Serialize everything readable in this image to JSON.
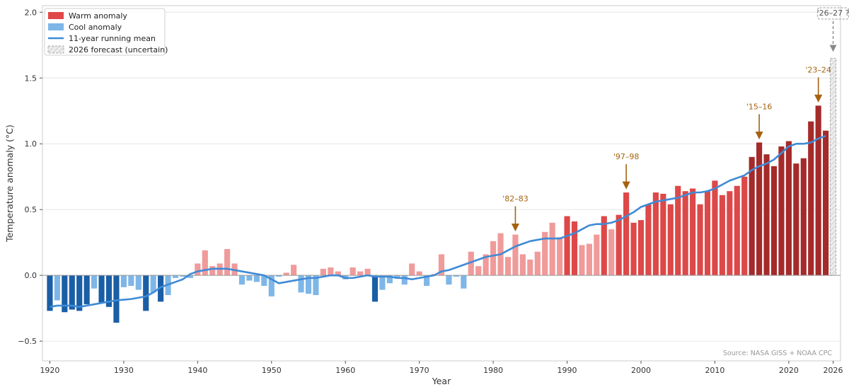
{
  "chart_data": {
    "type": "bar",
    "title": "",
    "xlabel": "Year",
    "ylabel": "Temperature anomaly (°C)",
    "xlim": [
      1919,
      2027
    ],
    "ylim": [
      -0.65,
      2.05
    ],
    "x_ticks": [
      1920,
      1930,
      1940,
      1950,
      1960,
      1970,
      1980,
      1990,
      2000,
      2010,
      2020,
      2026
    ],
    "y_ticks": [
      -0.5,
      0.0,
      0.5,
      1.0,
      1.5,
      2.0
    ],
    "y_tick_labels": [
      "−0.5",
      "0.0",
      "0.5",
      "1.0",
      "1.5",
      "2.0"
    ],
    "grid": "horizontal",
    "legend_placement": "top-left",
    "years": [
      1920,
      1921,
      1922,
      1923,
      1924,
      1925,
      1926,
      1927,
      1928,
      1929,
      1930,
      1931,
      1932,
      1933,
      1934,
      1935,
      1936,
      1937,
      1938,
      1939,
      1940,
      1941,
      1942,
      1943,
      1944,
      1945,
      1946,
      1947,
      1948,
      1949,
      1950,
      1951,
      1952,
      1953,
      1954,
      1955,
      1956,
      1957,
      1958,
      1959,
      1960,
      1961,
      1962,
      1963,
      1964,
      1965,
      1966,
      1967,
      1968,
      1969,
      1970,
      1971,
      1972,
      1973,
      1974,
      1975,
      1976,
      1977,
      1978,
      1979,
      1980,
      1981,
      1982,
      1983,
      1984,
      1985,
      1986,
      1987,
      1988,
      1989,
      1990,
      1991,
      1992,
      1993,
      1994,
      1995,
      1996,
      1997,
      1998,
      1999,
      2000,
      2001,
      2002,
      2003,
      2004,
      2005,
      2006,
      2007,
      2008,
      2009,
      2010,
      2011,
      2012,
      2013,
      2014,
      2015,
      2016,
      2017,
      2018,
      2019,
      2020,
      2021,
      2022,
      2023,
      2024,
      2025
    ],
    "anomalies": [
      -0.27,
      -0.19,
      -0.28,
      -0.26,
      -0.27,
      -0.22,
      -0.1,
      -0.21,
      -0.24,
      -0.36,
      -0.09,
      -0.08,
      -0.11,
      -0.27,
      -0.13,
      -0.2,
      -0.15,
      -0.02,
      -0.01,
      -0.02,
      0.09,
      0.19,
      0.07,
      0.09,
      0.2,
      0.09,
      -0.07,
      -0.04,
      -0.05,
      -0.08,
      -0.16,
      -0.01,
      0.02,
      0.08,
      -0.13,
      -0.14,
      -0.15,
      0.05,
      0.06,
      0.03,
      -0.03,
      0.06,
      0.03,
      0.05,
      -0.2,
      -0.11,
      -0.06,
      -0.02,
      -0.07,
      0.09,
      0.03,
      -0.08,
      0.01,
      0.16,
      -0.07,
      -0.01,
      -0.1,
      0.18,
      0.07,
      0.16,
      0.26,
      0.32,
      0.14,
      0.31,
      0.16,
      0.12,
      0.18,
      0.33,
      0.4,
      0.29,
      0.45,
      0.41,
      0.23,
      0.24,
      0.31,
      0.45,
      0.35,
      0.46,
      0.63,
      0.4,
      0.42,
      0.54,
      0.63,
      0.62,
      0.54,
      0.68,
      0.64,
      0.66,
      0.54,
      0.64,
      0.72,
      0.61,
      0.64,
      0.68,
      0.75,
      0.9,
      1.01,
      0.92,
      0.83,
      0.98,
      1.02,
      0.85,
      0.89,
      1.17,
      1.29,
      1.1
    ],
    "running_mean": {
      "x": [
        1920,
        1921,
        1922,
        1923,
        1924,
        1925,
        1926,
        1927,
        1928,
        1929,
        1930,
        1931,
        1932,
        1933,
        1934,
        1935,
        1936,
        1937,
        1938,
        1939,
        1940,
        1941,
        1942,
        1943,
        1944,
        1945,
        1946,
        1947,
        1948,
        1949,
        1950,
        1951,
        1952,
        1953,
        1954,
        1955,
        1956,
        1957,
        1958,
        1959,
        1960,
        1961,
        1962,
        1963,
        1964,
        1965,
        1966,
        1967,
        1968,
        1969,
        1970,
        1971,
        1972,
        1973,
        1974,
        1975,
        1976,
        1977,
        1978,
        1979,
        1980,
        1981,
        1982,
        1983,
        1984,
        1985,
        1986,
        1987,
        1988,
        1989,
        1990,
        1991,
        1992,
        1993,
        1994,
        1995,
        1996,
        1997,
        1998,
        1999,
        2000,
        2001,
        2002,
        2003,
        2004,
        2005,
        2006,
        2007,
        2008,
        2009,
        2010,
        2011,
        2012,
        2013,
        2014,
        2015,
        2016,
        2017,
        2018,
        2019,
        2020,
        2021,
        2022,
        2023,
        2024,
        2025
      ],
      "y": [
        -0.24,
        -0.23,
        -0.23,
        -0.23,
        -0.24,
        -0.23,
        -0.22,
        -0.21,
        -0.2,
        -0.19,
        -0.185,
        -0.18,
        -0.17,
        -0.16,
        -0.13,
        -0.09,
        -0.07,
        -0.05,
        -0.03,
        0.01,
        0.03,
        0.04,
        0.05,
        0.05,
        0.05,
        0.04,
        0.03,
        0.02,
        0.01,
        0.0,
        -0.03,
        -0.06,
        -0.05,
        -0.04,
        -0.03,
        -0.02,
        -0.02,
        -0.01,
        0.0,
        0.0,
        -0.02,
        -0.02,
        -0.01,
        0.0,
        -0.01,
        -0.01,
        -0.01,
        -0.02,
        -0.02,
        -0.03,
        -0.02,
        -0.01,
        0.0,
        0.03,
        0.04,
        0.06,
        0.08,
        0.1,
        0.12,
        0.14,
        0.15,
        0.16,
        0.19,
        0.22,
        0.24,
        0.26,
        0.27,
        0.28,
        0.28,
        0.28,
        0.3,
        0.32,
        0.35,
        0.38,
        0.39,
        0.39,
        0.4,
        0.42,
        0.45,
        0.48,
        0.52,
        0.54,
        0.56,
        0.57,
        0.58,
        0.59,
        0.61,
        0.63,
        0.63,
        0.64,
        0.66,
        0.69,
        0.72,
        0.74,
        0.76,
        0.8,
        0.83,
        0.85,
        0.88,
        0.93,
        0.98,
        1.0,
        1.0,
        1.01,
        1.04,
        1.06
      ]
    },
    "forecast": {
      "year": 2026,
      "value": 1.65,
      "label": "'26–27 ?"
    },
    "annotations": [
      {
        "text": "'82–83",
        "year": 1983,
        "value": 0.31
      },
      {
        "text": "'97–98",
        "year": 1998,
        "value": 0.63
      },
      {
        "text": "'15–16",
        "year": 2016,
        "value": 1.01
      },
      {
        "text": "'23–24",
        "year": 2024,
        "value": 1.29
      }
    ],
    "legend": [
      {
        "label": "Warm anomaly",
        "kind": "bar",
        "color": "#e04848"
      },
      {
        "label": "Cool anomaly",
        "kind": "bar",
        "color": "#7eb6e8"
      },
      {
        "label": "11-year running mean",
        "kind": "line",
        "color": "#3f8ad6"
      },
      {
        "label": "2026 forecast (uncertain)",
        "kind": "hatched",
        "color": "#dddddd"
      }
    ],
    "source": "Source: NASA GISS + NOAA CPC",
    "colors": {
      "warm_light": "#f09a9a",
      "warm": "#dd4848",
      "warm_dark": "#a52a2a",
      "cool_light": "#7eb6e8",
      "cool_dark": "#1a5ea6",
      "mean_line": "#3f8ad6",
      "annotation": "#a5620e",
      "forecast_fill": "#e8e8e8",
      "forecast_stroke": "#aaaaaa",
      "grid": "#e6e6e6",
      "zero_line": "#999999"
    }
  }
}
